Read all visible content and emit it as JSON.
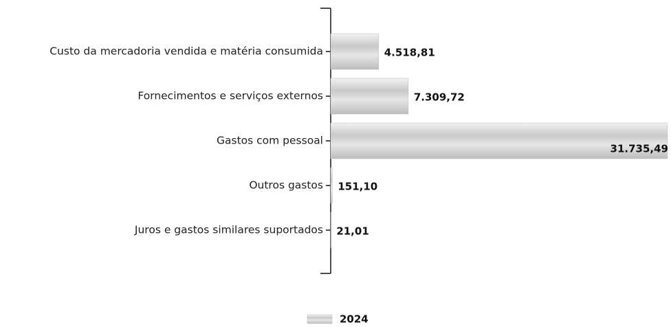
{
  "chart_data": {
    "type": "hbar",
    "categories": [
      "Custo da mercadoria vendida e matéria consumida",
      "Fornecimentos e serviços externos",
      "Gastos com pessoal",
      "Outros gastos",
      "Juros e gastos similares suportados"
    ],
    "series": [
      {
        "name": "2024",
        "color": "#d6d6d6",
        "values": [
          4518.81,
          7309.72,
          31735.49,
          151.1,
          21.01
        ],
        "value_labels": [
          "4.518,81",
          "7.309,72",
          "31.735,49",
          "151,10",
          "21,01"
        ]
      }
    ],
    "xlim": [
      0,
      32000
    ],
    "legend": "bottom"
  }
}
